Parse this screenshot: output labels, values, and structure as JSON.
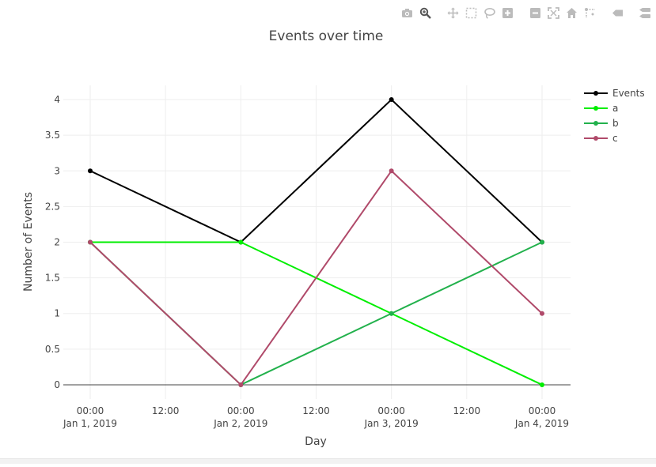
{
  "chart_data": {
    "type": "line",
    "title": "Events over time",
    "xlabel": "Day",
    "ylabel": "Number of Events",
    "x": [
      "2019-01-01",
      "2019-01-02",
      "2019-01-03",
      "2019-01-04"
    ],
    "x_tick_labels": [
      [
        "00:00",
        "Jan 1, 2019"
      ],
      [
        "12:00",
        ""
      ],
      [
        "00:00",
        "Jan 2, 2019"
      ],
      [
        "12:00",
        ""
      ],
      [
        "00:00",
        "Jan 3, 2019"
      ],
      [
        "12:00",
        ""
      ],
      [
        "00:00",
        "Jan 4, 2019"
      ]
    ],
    "y_ticks": [
      "0",
      "0.5",
      "1",
      "1.5",
      "2",
      "2.5",
      "3",
      "3.5",
      "4"
    ],
    "ylim": [
      -0.2,
      4.2
    ],
    "grid": true,
    "legend_position": "top-right",
    "series": [
      {
        "name": "Events",
        "values": [
          3,
          2,
          4,
          2
        ],
        "color": "#000000"
      },
      {
        "name": "a",
        "values": [
          2,
          2,
          1,
          0
        ],
        "color": "#00ee00"
      },
      {
        "name": "b",
        "values": [
          2,
          0,
          1,
          2
        ],
        "color": "#22b14c"
      },
      {
        "name": "c",
        "values": [
          2,
          0,
          3,
          1
        ],
        "color": "#b04a6a"
      }
    ]
  },
  "colors": {
    "grid": "#eeeeee",
    "zeroline": "#444444",
    "text": "#444444",
    "modebar_icon": "#bbbbbb",
    "modebar_active": "#555555"
  },
  "modebar": [
    {
      "icon": "camera-icon",
      "active": false
    },
    {
      "icon": "zoom-icon",
      "active": true
    },
    {
      "icon": "pan-icon",
      "active": false
    },
    {
      "icon": "box-select-icon",
      "active": false
    },
    {
      "icon": "lasso-select-icon",
      "active": false
    },
    {
      "icon": "zoom-in-icon",
      "active": false
    },
    {
      "icon": "zoom-out-icon",
      "active": false
    },
    {
      "icon": "autoscale-icon",
      "active": false
    },
    {
      "icon": "reset-axes-icon",
      "active": false
    },
    {
      "icon": "spike-lines-icon",
      "active": false
    },
    {
      "icon": "hover-closest-icon",
      "active": false
    },
    {
      "icon": "hover-compare-icon",
      "active": false
    }
  ]
}
